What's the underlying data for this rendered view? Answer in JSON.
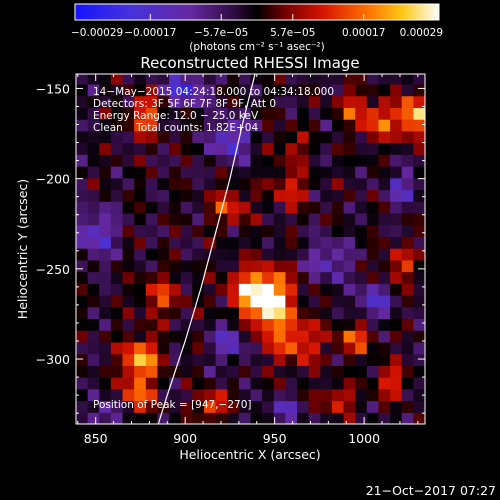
{
  "chart_data": {
    "type": "heatmap",
    "title": "Reconstructed RHESSI Image",
    "xlabel": "Heliocentric X (arcsec)",
    "ylabel": "Heliocentric Y (arcsec)",
    "xlim": [
      839,
      1034
    ],
    "ylim": [
      -336,
      -142
    ],
    "xticks": [
      850,
      900,
      950,
      1000
    ],
    "xtick_labels": [
      "850",
      "900",
      "950",
      "1000"
    ],
    "yticks": [
      -150,
      -200,
      -250,
      -300
    ],
    "ytick_labels": [
      "−150",
      "−200",
      "−250",
      "−300"
    ],
    "colorbar": {
      "tick_labels": [
        "−0.00029",
        "−0.00017",
        "−5.7e−05",
        "5.7e−05",
        "0.00017",
        "0.00029"
      ],
      "tick_values": [
        -0.00029,
        -0.00017,
        -5.7e-05,
        5.7e-05,
        0.00017,
        0.00029
      ],
      "range": [
        -0.00029,
        0.00029
      ],
      "units": "(photons cm⁻² s⁻¹ asec⁻²)",
      "colormap": "blue-purple-black-red-yellow-white"
    },
    "annotations": [
      "14−May−2015 04:24:18.000 to 04:34:18.000",
      "Detectors: 3F 5F 6F 7F 8F 9F, Att 0",
      "Energy Range: 12.0 − 25.0 keV",
      "Clean    Total counts: 1.82E+04"
    ],
    "peak_label": "Position of Peak = [947,−270]",
    "peak": [
      947,
      -270
    ],
    "sources": [
      {
        "x": 947,
        "y": -268,
        "amp": 1.0,
        "sx": 9,
        "sy": 11
      },
      {
        "x": 936,
        "y": -262,
        "amp": 0.55,
        "sx": 10,
        "sy": 9
      },
      {
        "x": 962,
        "y": -290,
        "amp": 0.55,
        "sx": 10,
        "sy": 9
      },
      {
        "x": 875,
        "y": -300,
        "amp": 0.85,
        "sx": 7,
        "sy": 8
      },
      {
        "x": 873,
        "y": -320,
        "amp": 0.6,
        "sx": 6,
        "sy": 7
      },
      {
        "x": 1028,
        "y": -165,
        "amp": 0.9,
        "sx": 6,
        "sy": 8
      },
      {
        "x": 1008,
        "y": -168,
        "amp": 0.6,
        "sx": 7,
        "sy": 7
      },
      {
        "x": 993,
        "y": -160,
        "amp": 0.45,
        "sx": 6,
        "sy": 6
      },
      {
        "x": 878,
        "y": -165,
        "amp": 0.6,
        "sx": 6,
        "sy": 8
      },
      {
        "x": 886,
        "y": -265,
        "amp": 0.45,
        "sx": 8,
        "sy": 8
      },
      {
        "x": 915,
        "y": -325,
        "amp": 0.7,
        "sx": 5,
        "sy": 5
      },
      {
        "x": 995,
        "y": -288,
        "amp": 0.55,
        "sx": 7,
        "sy": 6
      },
      {
        "x": 1015,
        "y": -312,
        "amp": 0.5,
        "sx": 6,
        "sy": 6
      },
      {
        "x": 985,
        "y": -322,
        "amp": 0.45,
        "sx": 7,
        "sy": 5
      },
      {
        "x": 925,
        "y": -215,
        "amp": 0.5,
        "sx": 7,
        "sy": 7
      },
      {
        "x": 958,
        "y": -205,
        "amp": 0.45,
        "sx": 7,
        "sy": 7
      },
      {
        "x": 960,
        "y": -182,
        "amp": 0.35,
        "sx": 6,
        "sy": 6
      },
      {
        "x": 1020,
        "y": -248,
        "amp": 0.45,
        "sx": 6,
        "sy": 7
      },
      {
        "x": 900,
        "y": -150,
        "amp": -0.7,
        "sx": 8,
        "sy": 6
      },
      {
        "x": 925,
        "y": -178,
        "amp": -0.6,
        "sx": 7,
        "sy": 8
      },
      {
        "x": 850,
        "y": -230,
        "amp": -0.5,
        "sx": 8,
        "sy": 10
      },
      {
        "x": 925,
        "y": -290,
        "amp": -0.5,
        "sx": 6,
        "sy": 8
      },
      {
        "x": 1005,
        "y": -268,
        "amp": -0.5,
        "sx": 7,
        "sy": 7
      },
      {
        "x": 980,
        "y": -245,
        "amp": -0.45,
        "sx": 8,
        "sy": 8
      },
      {
        "x": 1022,
        "y": -205,
        "amp": -0.4,
        "sx": 7,
        "sy": 7
      },
      {
        "x": 857,
        "y": -330,
        "amp": -0.45,
        "sx": 6,
        "sy": 6
      },
      {
        "x": 955,
        "y": -328,
        "amp": -0.4,
        "sx": 7,
        "sy": 5
      }
    ],
    "limb_curve": [
      [
        939,
        -142
      ],
      [
        932,
        -170
      ],
      [
        925,
        -200
      ],
      [
        917,
        -230
      ],
      [
        909,
        -260
      ],
      [
        900,
        -290
      ],
      [
        890,
        -320
      ],
      [
        885,
        -336
      ]
    ]
  },
  "footer": {
    "timestamp": "21−Oct−2017 07:27"
  }
}
